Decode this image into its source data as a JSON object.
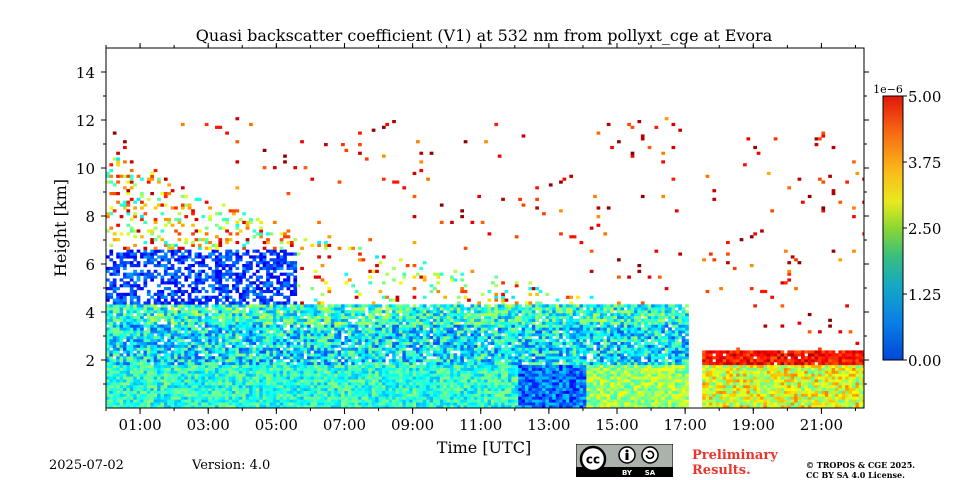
{
  "chart_data": {
    "type": "heatmap",
    "title": "Quasi backscatter coefficient (V1) at 532 nm from pollyxt_cge at Evora",
    "xlabel": "Time [UTC]",
    "ylabel": "Height [km]",
    "x_tick_labels": [
      "01:00",
      "03:00",
      "05:00",
      "07:00",
      "09:00",
      "11:00",
      "13:00",
      "15:00",
      "17:00",
      "19:00",
      "21:00"
    ],
    "x_range_hours": [
      0.0,
      22.25
    ],
    "y_ticks": [
      2,
      4,
      6,
      8,
      10,
      12,
      14
    ],
    "ylim": [
      0,
      15
    ],
    "colorbar": {
      "offset_label": "1e−6",
      "ticks": [
        "0.00",
        "1.25",
        "2.50",
        "3.75",
        "5.00"
      ],
      "range": [
        0,
        5.0
      ],
      "colormap": "jet"
    },
    "data_gap_hours": [
      17.05,
      17.4
    ],
    "layers": {
      "near_range_top_km": 1.8,
      "aerosol_layer_top_km": 4.3,
      "late_boundary_layer_top_km": 2.3,
      "residual_layer_top_km_at_start": 6.5
    }
  },
  "footer": {
    "date": "2025-07-02",
    "version": "Version: 4.0",
    "prelim_line1": "Preliminary",
    "prelim_line2": "Results.",
    "copyright_line1": "© TROPOS & CGE 2025.",
    "copyright_line2": "CC BY SA 4.0 License.",
    "badge_by": "BY",
    "badge_sa": "SA",
    "badge_cc": "cc"
  }
}
